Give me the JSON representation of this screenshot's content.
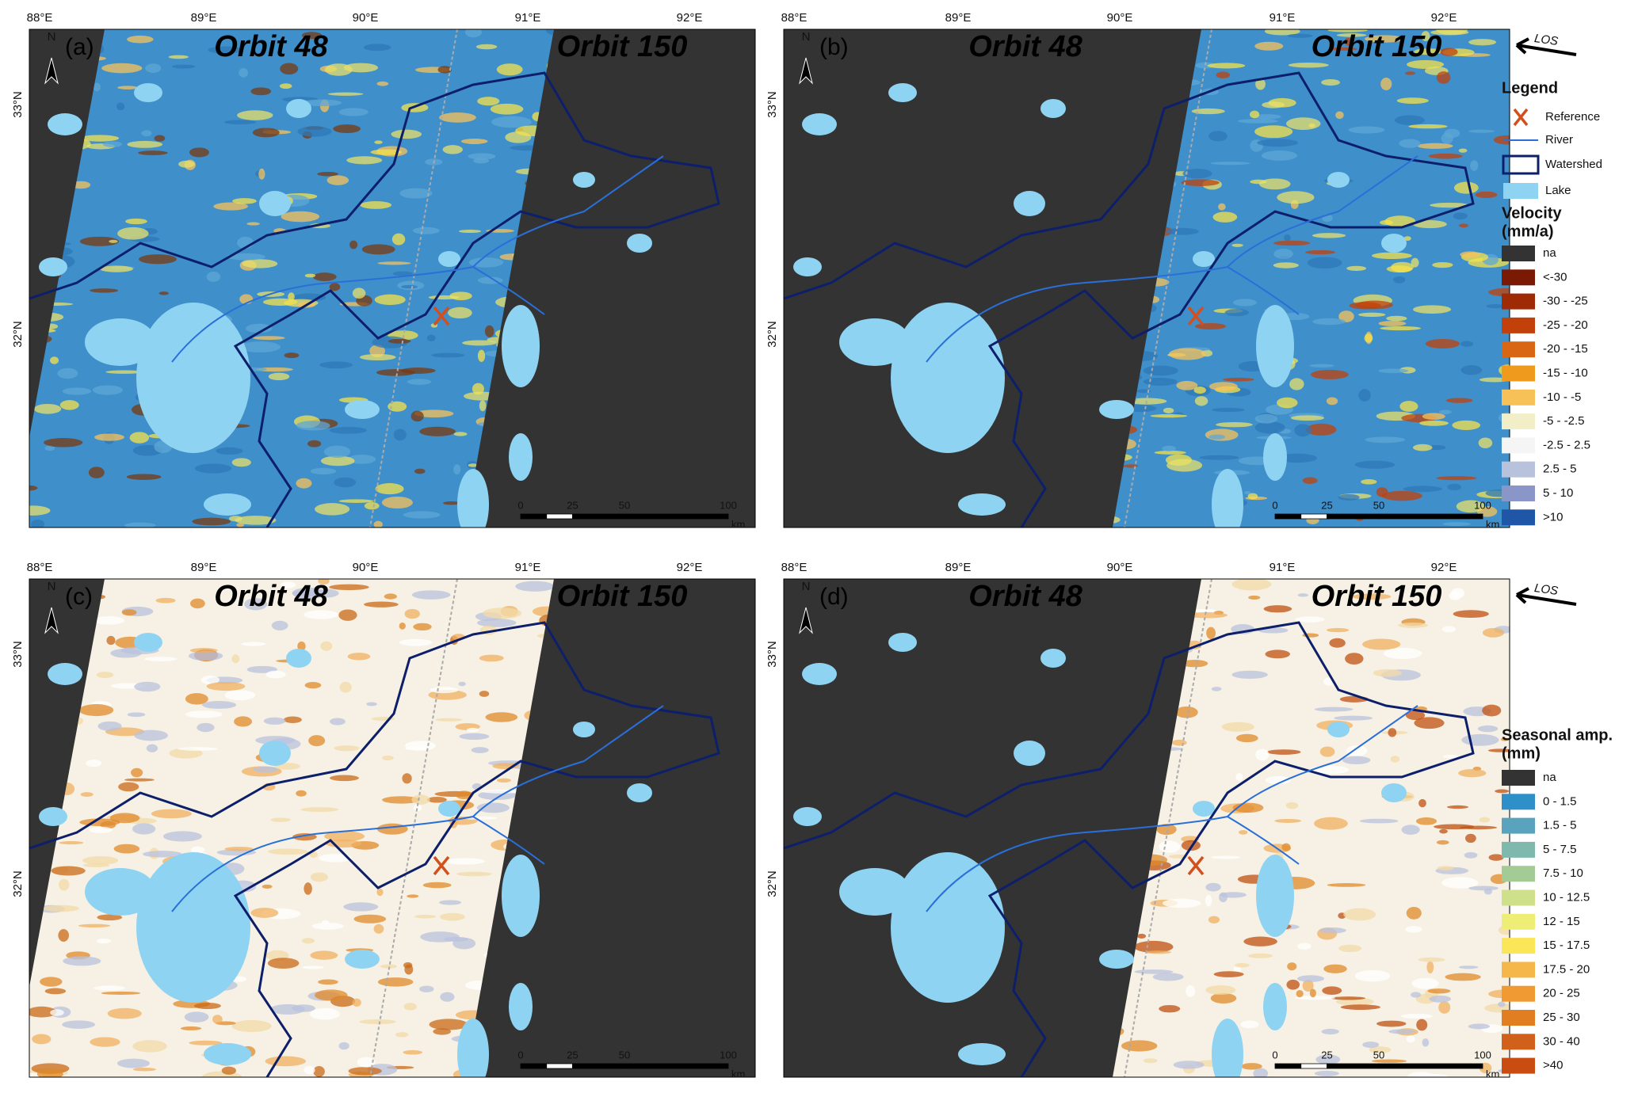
{
  "panels": [
    {
      "label": "(a)",
      "orbits": [
        "Orbit 48",
        "Orbit 150"
      ],
      "north": "N",
      "lon_ticks": [
        "88°E",
        "89°E",
        "90°E",
        "91°E",
        "92°E"
      ],
      "lat_ticks": [
        "33°N",
        "32°N"
      ],
      "scale": [
        "0",
        "25",
        "50",
        "100",
        "km"
      ]
    },
    {
      "label": "(b)",
      "orbits": [
        "Orbit 48",
        "Orbit 150"
      ],
      "north": "N",
      "lon_ticks": [
        "88°E",
        "89°E",
        "90°E",
        "91°E",
        "92°E"
      ],
      "lat_ticks": [
        "33°N",
        "32°N"
      ],
      "scale": [
        "0",
        "25",
        "50",
        "100",
        "km"
      ],
      "los": "LOS"
    },
    {
      "label": "(c)",
      "orbits": [
        "Orbit 48",
        "Orbit 150"
      ],
      "north": "N",
      "lon_ticks": [
        "88°E",
        "89°E",
        "90°E",
        "91°E",
        "92°E"
      ],
      "lat_ticks": [
        "33°N",
        "32°N"
      ],
      "scale": [
        "0",
        "25",
        "50",
        "100",
        "km"
      ]
    },
    {
      "label": "(d)",
      "orbits": [
        "Orbit 48",
        "Orbit 150"
      ],
      "north": "N",
      "lon_ticks": [
        "88°E",
        "89°E",
        "90°E",
        "91°E",
        "92°E"
      ],
      "lat_ticks": [
        "33°N",
        "32°N"
      ],
      "scale": [
        "0",
        "25",
        "50",
        "100",
        "km"
      ],
      "los": "LOS"
    }
  ],
  "legend": {
    "title": "Legend",
    "items": [
      "Reference",
      "River",
      "Watershed",
      "Lake"
    ]
  },
  "velocity": {
    "title": "Velocity",
    "unit": "(mm/a)",
    "classes": [
      {
        "label": "na",
        "color": "#333333"
      },
      {
        "label": "<-30",
        "color": "#7a1a05"
      },
      {
        "label": "-30 - -25",
        "color": "#9e2a06"
      },
      {
        "label": "-25 - -20",
        "color": "#c2410a"
      },
      {
        "label": "-20 - -15",
        "color": "#d86612"
      },
      {
        "label": "-15 - -10",
        "color": "#ef9a1c"
      },
      {
        "label": "-10 - -5",
        "color": "#f8c158"
      },
      {
        "label": "-5 - -2.5",
        "color": "#f2efc8"
      },
      {
        "label": "-2.5 - 2.5",
        "color": "#f5f5f5"
      },
      {
        "label": "2.5 - 5",
        "color": "#b9c2dd"
      },
      {
        "label": "5 - 10",
        "color": "#8a96c8"
      },
      {
        "label": ">10",
        "color": "#1f56a8"
      }
    ]
  },
  "seasonal": {
    "title": "Seasonal amp.",
    "unit": "(mm)",
    "classes": [
      {
        "label": "na",
        "color": "#333333"
      },
      {
        "label": "0 - 1.5",
        "color": "#2f8fc8"
      },
      {
        "label": "1.5 - 5",
        "color": "#5aa3bf"
      },
      {
        "label": "5 - 7.5",
        "color": "#7fb9ad"
      },
      {
        "label": "7.5 - 10",
        "color": "#a3cb96"
      },
      {
        "label": "10 - 12.5",
        "color": "#cfe08a"
      },
      {
        "label": "12 - 15",
        "color": "#eeee77"
      },
      {
        "label": "15 - 17.5",
        "color": "#fbe658"
      },
      {
        "label": "17.5 - 20",
        "color": "#f6b74a"
      },
      {
        "label": "20 - 25",
        "color": "#f09a33"
      },
      {
        "label": "25 - 30",
        "color": "#e27e22"
      },
      {
        "label": "30 - 40",
        "color": "#d0601a"
      },
      {
        "label": ">40",
        "color": "#c94c10"
      }
    ]
  }
}
